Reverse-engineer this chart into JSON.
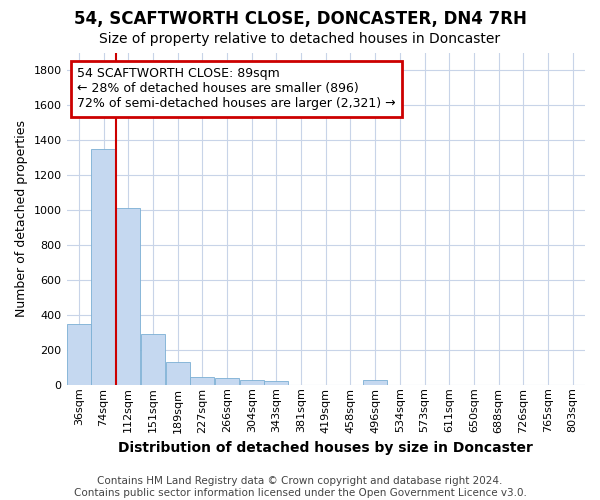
{
  "title": "54, SCAFTWORTH CLOSE, DONCASTER, DN4 7RH",
  "subtitle": "Size of property relative to detached houses in Doncaster",
  "xlabel": "Distribution of detached houses by size in Doncaster",
  "ylabel": "Number of detached properties",
  "footer_line1": "Contains HM Land Registry data © Crown copyright and database right 2024.",
  "footer_line2": "Contains public sector information licensed under the Open Government Licence v3.0.",
  "bin_labels": [
    "36sqm",
    "74sqm",
    "112sqm",
    "151sqm",
    "189sqm",
    "227sqm",
    "266sqm",
    "304sqm",
    "343sqm",
    "381sqm",
    "419sqm",
    "458sqm",
    "496sqm",
    "534sqm",
    "573sqm",
    "611sqm",
    "650sqm",
    "688sqm",
    "726sqm",
    "765sqm",
    "803sqm"
  ],
  "bar_values": [
    350,
    1350,
    1010,
    290,
    130,
    45,
    40,
    30,
    20,
    0,
    0,
    0,
    30,
    0,
    0,
    0,
    0,
    0,
    0,
    0,
    0
  ],
  "bar_color": "#c5d8f0",
  "bar_edge_color": "#7bafd4",
  "vline_x": 1.5,
  "annotation_text": "54 SCAFTWORTH CLOSE: 89sqm\n← 28% of detached houses are smaller (896)\n72% of semi-detached houses are larger (2,321) →",
  "annotation_box_color": "#ffffff",
  "annotation_box_edge_color": "#cc0000",
  "vline_color": "#cc0000",
  "ylim": [
    0,
    1900
  ],
  "yticks": [
    0,
    200,
    400,
    600,
    800,
    1000,
    1200,
    1400,
    1600,
    1800
  ],
  "grid_color": "#c8d4e8",
  "bg_color": "#ffffff",
  "plot_bg_color": "#ffffff",
  "title_fontsize": 12,
  "subtitle_fontsize": 10,
  "xlabel_fontsize": 10,
  "ylabel_fontsize": 9,
  "tick_fontsize": 8,
  "annotation_fontsize": 9,
  "footer_fontsize": 7.5
}
